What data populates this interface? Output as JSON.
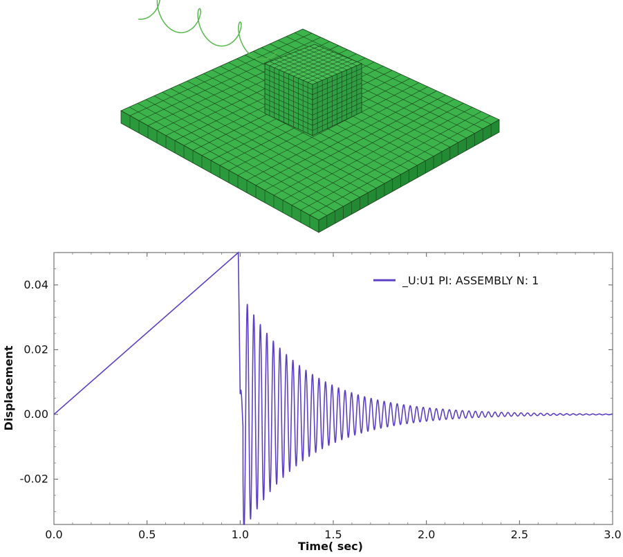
{
  "model": {
    "plate_color": "#3cb44b",
    "block_color": "#2f9e42",
    "mesh_line_color": "#1a3d1a",
    "spring_color": "#55b84a",
    "spring_icon": "coil-spring-icon"
  },
  "chart_data": {
    "type": "line",
    "title": "",
    "xlabel": "Time( sec)",
    "ylabel": "Displacement",
    "xlim": [
      0.0,
      3.0
    ],
    "ylim": [
      -0.034,
      0.05
    ],
    "xticks": [
      "0.0",
      "0.5",
      "1.0",
      "1.5",
      "2.0",
      "2.5",
      "3.0"
    ],
    "yticks": [
      "0.04",
      "0.02",
      "0.00",
      "-0.02"
    ],
    "xtick_values": [
      0.0,
      0.5,
      1.0,
      1.5,
      2.0,
      2.5,
      3.0
    ],
    "ytick_values": [
      0.04,
      0.02,
      0.0,
      -0.02
    ],
    "grid": false,
    "legend_position": "top-right",
    "series": [
      {
        "name": "_U:U1 PI: ASSEMBLY N: 1",
        "color": "#5b3fc4",
        "description_points": {
          "ramp_start": [
            0.0,
            0.0
          ],
          "ramp_peak": [
            0.99,
            0.05
          ],
          "initial_amplitude": 0.038,
          "oscillation_period": 0.035,
          "decay_rate": 2.9,
          "release_time": 1.0,
          "end_time": 3.0
        }
      }
    ]
  }
}
